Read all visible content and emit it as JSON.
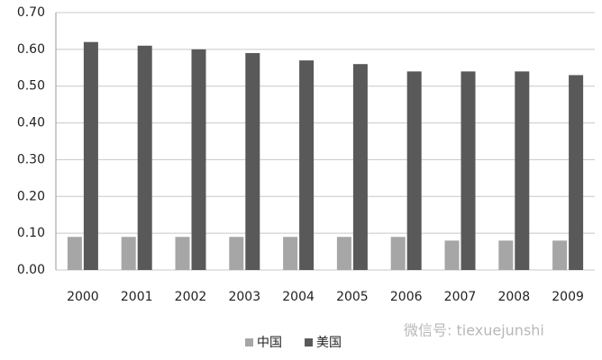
{
  "chart_data": {
    "type": "bar",
    "categories": [
      "2000",
      "2001",
      "2002",
      "2003",
      "2004",
      "2005",
      "2006",
      "2007",
      "2008",
      "2009"
    ],
    "series": [
      {
        "name": "中国",
        "color": "#a6a6a6",
        "values": [
          0.09,
          0.09,
          0.09,
          0.09,
          0.09,
          0.09,
          0.09,
          0.08,
          0.08,
          0.08
        ]
      },
      {
        "name": "美国",
        "color": "#595959",
        "values": [
          0.62,
          0.61,
          0.6,
          0.59,
          0.57,
          0.56,
          0.54,
          0.54,
          0.54,
          0.53
        ]
      }
    ],
    "ylim": [
      0,
      0.7
    ],
    "yticks": [
      {
        "value": 0,
        "label": "0.00"
      },
      {
        "value": 0.1,
        "label": "0.10"
      },
      {
        "value": 0.2,
        "label": "0.20"
      },
      {
        "value": 0.3,
        "label": "0.30"
      },
      {
        "value": 0.4,
        "label": "0.40"
      },
      {
        "value": 0.5,
        "label": "0.50"
      },
      {
        "value": 0.6,
        "label": "0.60"
      },
      {
        "value": 0.7,
        "label": "0.70"
      }
    ],
    "grid": true,
    "legend": "bottom",
    "watermark": "微信号: tiexuejunshi"
  }
}
